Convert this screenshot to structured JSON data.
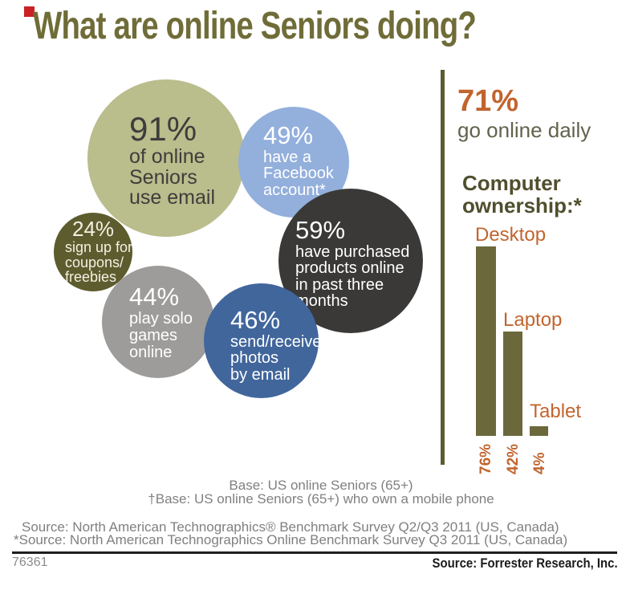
{
  "title": "What are online Seniors doing?",
  "marker_color": "#cc2027",
  "colors": {
    "title_olive": "#6f6c38",
    "accent_orange": "#c1652e",
    "bar_olive": "#6b693c",
    "divider_olive": "#5d5c31",
    "footnote_gray": "#808080"
  },
  "bubbles": [
    {
      "pct": "91%",
      "lines": [
        "of online",
        "Seniors",
        "use email"
      ],
      "color": "#babd8c",
      "text_color": "#3d3d3b"
    },
    {
      "pct": "49%",
      "lines": [
        "have a",
        "Facebook",
        "account*"
      ],
      "color": "#93afdc",
      "text_color": "#ffffff"
    },
    {
      "pct": "24%",
      "lines": [
        "sign up for",
        "coupons/",
        "freebies"
      ],
      "color": "#5d5c2e",
      "text_color": "#f3f1e3"
    },
    {
      "pct": "59%",
      "lines": [
        "have purchased",
        "products online",
        "in past three",
        "months"
      ],
      "color": "#3a3937",
      "text_color": "#ffffff"
    },
    {
      "pct": "44%",
      "lines": [
        "play solo",
        "games",
        "online"
      ],
      "color": "#9d9c9a",
      "text_color": "#ffffff"
    },
    {
      "pct": "46%",
      "lines": [
        "send/receive",
        "photos",
        "by email"
      ],
      "color": "#41669c",
      "text_color": "#ffffff"
    }
  ],
  "right_panel": {
    "daily_pct": "71%",
    "daily_label": "go online daily",
    "ownership_line1": "Computer",
    "ownership_line2": "ownership:*"
  },
  "chart_data": [
    {
      "type": "bubble",
      "title": "What are online Seniors doing?",
      "points": [
        {
          "value": 91,
          "label": "of online Seniors use email"
        },
        {
          "value": 49,
          "label": "have a Facebook account*"
        },
        {
          "value": 24,
          "label": "sign up for coupons/freebies"
        },
        {
          "value": 59,
          "label": "have purchased products online in past three months"
        },
        {
          "value": 44,
          "label": "play solo games online"
        },
        {
          "value": 46,
          "label": "send/receive photos by email"
        }
      ],
      "annotation": "71% go online daily"
    },
    {
      "type": "bar",
      "title": "Computer ownership:*",
      "categories": [
        "Desktop",
        "Laptop",
        "Tablet"
      ],
      "values": [
        76,
        42,
        4
      ],
      "value_labels": [
        "76%",
        "42%",
        "4%"
      ],
      "ylim": [
        0,
        100
      ],
      "orientation": "vertical",
      "value_label_rotation": -90,
      "bar_color": "#6b693c",
      "label_color": "#c1652e"
    }
  ],
  "footer": {
    "base_line1": "Base: US online Seniors (65+)",
    "base_line2": "†Base: US online Seniors (65+) who own a mobile phone",
    "source_line1": "Source: North American Technographics® Benchmark Survey Q2/Q3 2011 (US, Canada)",
    "source_line2": "*Source: North American Technographics Online Benchmark Survey Q3 2011 (US, Canada)",
    "doc_number": "76361",
    "source_right": "Source: Forrester Research, Inc."
  }
}
